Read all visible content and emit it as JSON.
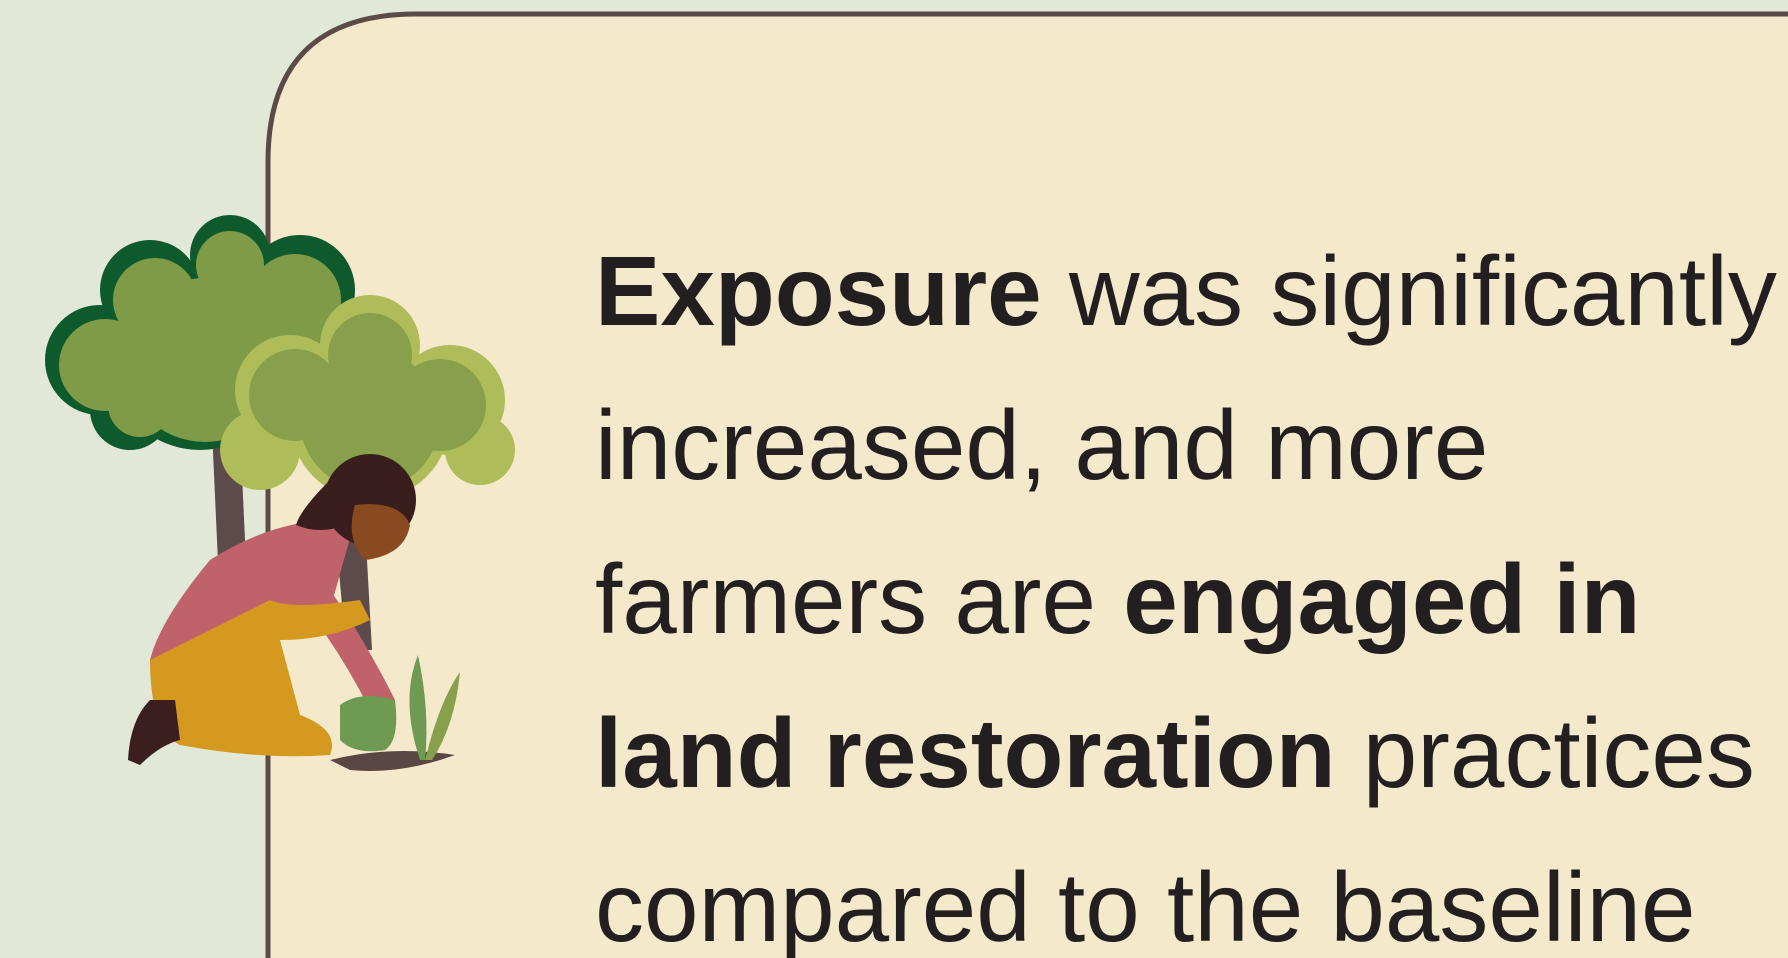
{
  "text": {
    "lines": [
      [
        {
          "text": "Exposure",
          "bold": true
        },
        {
          "text": " was significantly",
          "bold": false
        }
      ],
      [
        {
          "text": "increased, and more",
          "bold": false
        }
      ],
      [
        {
          "text": "farmers are ",
          "bold": false
        },
        {
          "text": "engaged in",
          "bold": true
        }
      ],
      [
        {
          "text": "land restoration",
          "bold": true
        },
        {
          "text": " practices",
          "bold": false
        }
      ],
      [
        {
          "text": "compared to the baseline",
          "bold": false
        }
      ]
    ]
  }
}
